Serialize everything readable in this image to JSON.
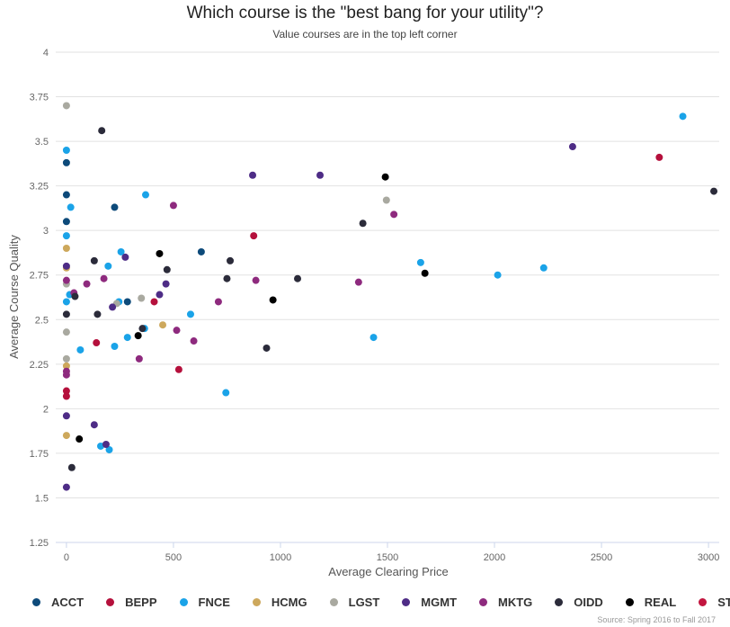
{
  "chart_data": {
    "type": "scatter",
    "title": "Which course is the \"best bang for your utility\"?",
    "subtitle": "Value courses are in the top left corner",
    "xlabel": "Average Clearing Price",
    "ylabel": "Average Course Quality",
    "xlim": [
      -50,
      3050
    ],
    "ylim": [
      1.25,
      4
    ],
    "xticks": [
      0,
      500,
      1000,
      1500,
      2000,
      2500,
      3000
    ],
    "yticks": [
      1.25,
      1.5,
      1.75,
      2,
      2.25,
      2.5,
      2.75,
      3,
      3.25,
      3.5,
      3.75,
      4
    ],
    "ytick_labels": [
      "1.25",
      "1.5",
      "1.75",
      "2",
      "2.25",
      "2.5",
      "2.75",
      "3",
      "3.25",
      "3.5",
      "3.75",
      "4"
    ],
    "grid": true,
    "legend_position": "bottom-left",
    "credit": "Source: Spring 2016 to Fall 2017",
    "series": [
      {
        "name": "ACCT",
        "color": "#0d4a7a",
        "points": [
          [
            0,
            3.38
          ],
          [
            0,
            3.2
          ],
          [
            0,
            3.05
          ],
          [
            225,
            3.13
          ],
          [
            630,
            2.88
          ],
          [
            285,
            2.6
          ]
        ]
      },
      {
        "name": "BEPP",
        "color": "#b5103c",
        "points": [
          [
            0,
            2.1
          ],
          [
            0,
            2.07
          ],
          [
            140,
            2.37
          ],
          [
            410,
            2.6
          ],
          [
            525,
            2.22
          ],
          [
            875,
            2.97
          ],
          [
            2770,
            3.41
          ]
        ]
      },
      {
        "name": "FNCE",
        "color": "#1aa3e8",
        "points": [
          [
            0,
            3.45
          ],
          [
            0,
            2.97
          ],
          [
            20,
            3.13
          ],
          [
            0,
            2.6
          ],
          [
            15,
            2.64
          ],
          [
            65,
            2.33
          ],
          [
            160,
            1.79
          ],
          [
            195,
            2.8
          ],
          [
            200,
            1.77
          ],
          [
            225,
            2.35
          ],
          [
            245,
            2.6
          ],
          [
            255,
            2.88
          ],
          [
            285,
            2.4
          ],
          [
            365,
            2.45
          ],
          [
            370,
            3.2
          ],
          [
            580,
            2.53
          ],
          [
            745,
            2.09
          ],
          [
            1435,
            2.4
          ],
          [
            1655,
            2.82
          ],
          [
            2015,
            2.75
          ],
          [
            2230,
            2.79
          ],
          [
            2880,
            3.64
          ]
        ]
      },
      {
        "name": "HCMG",
        "color": "#cda85c",
        "points": [
          [
            0,
            2.9
          ],
          [
            0,
            2.79
          ],
          [
            0,
            2.24
          ],
          [
            0,
            1.85
          ],
          [
            450,
            2.47
          ]
        ]
      },
      {
        "name": "LGST",
        "color": "#a9a9a0",
        "points": [
          [
            0,
            3.7
          ],
          [
            0,
            2.7
          ],
          [
            0,
            2.43
          ],
          [
            0,
            2.28
          ],
          [
            235,
            2.59
          ],
          [
            350,
            2.62
          ],
          [
            1495,
            3.17
          ]
        ]
      },
      {
        "name": "MGMT",
        "color": "#4e2c86",
        "points": [
          [
            0,
            2.8
          ],
          [
            0,
            1.96
          ],
          [
            0,
            1.56
          ],
          [
            130,
            1.91
          ],
          [
            185,
            1.8
          ],
          [
            215,
            2.57
          ],
          [
            275,
            2.85
          ],
          [
            435,
            2.64
          ],
          [
            465,
            2.7
          ],
          [
            870,
            3.31
          ],
          [
            1185,
            3.31
          ],
          [
            2365,
            3.47
          ]
        ]
      },
      {
        "name": "MKTG",
        "color": "#8e2a7e",
        "points": [
          [
            0,
            2.72
          ],
          [
            0,
            2.21
          ],
          [
            0,
            2.19
          ],
          [
            35,
            2.65
          ],
          [
            95,
            2.7
          ],
          [
            175,
            2.73
          ],
          [
            340,
            2.28
          ],
          [
            500,
            3.14
          ],
          [
            515,
            2.44
          ],
          [
            595,
            2.38
          ],
          [
            710,
            2.6
          ],
          [
            885,
            2.72
          ],
          [
            1365,
            2.71
          ],
          [
            1530,
            3.09
          ]
        ]
      },
      {
        "name": "OIDD",
        "color": "#2b2b3a",
        "points": [
          [
            0,
            2.53
          ],
          [
            25,
            1.67
          ],
          [
            40,
            2.63
          ],
          [
            130,
            2.83
          ],
          [
            145,
            2.53
          ],
          [
            165,
            3.56
          ],
          [
            355,
            2.45
          ],
          [
            470,
            2.78
          ],
          [
            750,
            2.73
          ],
          [
            765,
            2.83
          ],
          [
            935,
            2.34
          ],
          [
            1080,
            2.73
          ],
          [
            1385,
            3.04
          ],
          [
            3025,
            3.22
          ]
        ]
      },
      {
        "name": "REAL",
        "color": "#000000",
        "points": [
          [
            60,
            1.83
          ],
          [
            335,
            2.41
          ],
          [
            435,
            2.87
          ],
          [
            965,
            2.61
          ],
          [
            1490,
            3.3
          ],
          [
            1675,
            2.76
          ]
        ]
      },
      {
        "name": "STAT",
        "color": "#c2153f",
        "points": []
      }
    ]
  }
}
